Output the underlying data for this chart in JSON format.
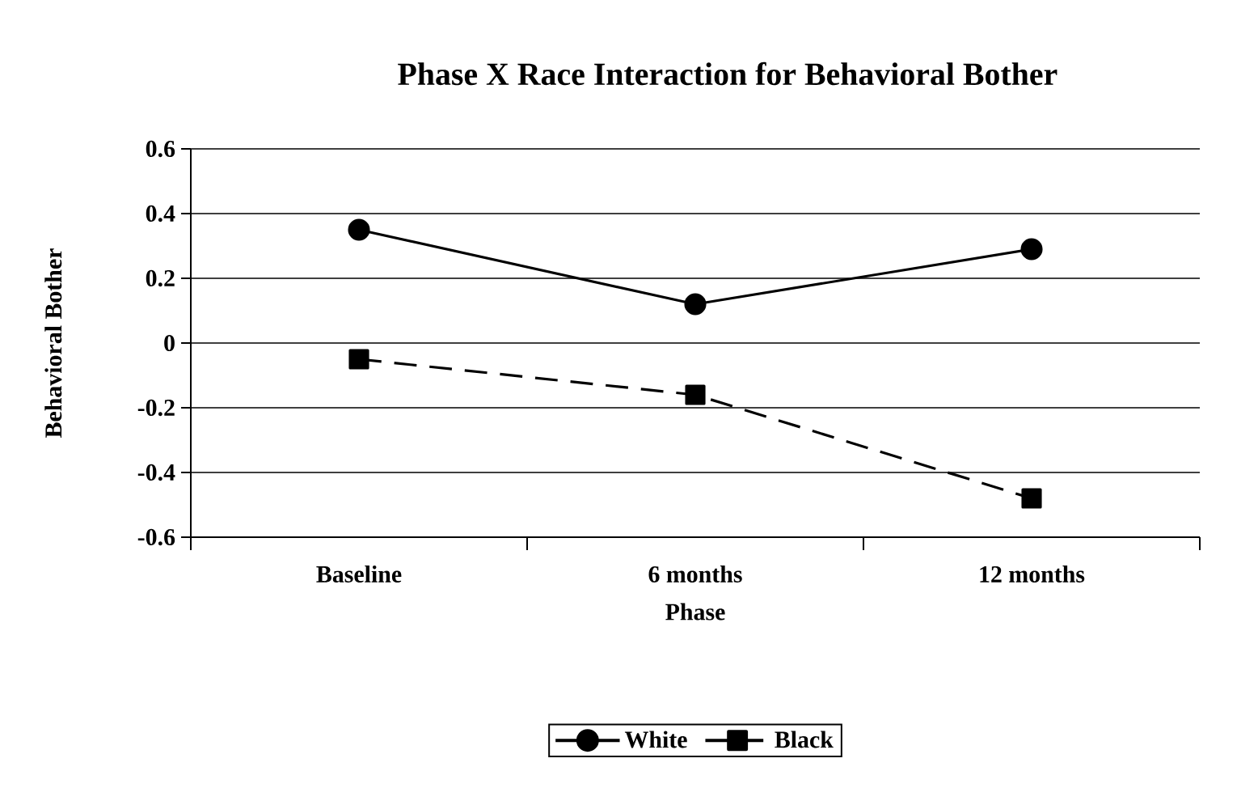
{
  "chart_data": {
    "type": "line",
    "title": "Phase X Race Interaction for Behavioral Bother",
    "xlabel": "Phase",
    "ylabel": "Behavioral Bother",
    "categories": [
      "Baseline",
      "6 months",
      "12 months"
    ],
    "series": [
      {
        "name": "White",
        "color": "#000000",
        "values": [
          0.35,
          0.12,
          0.29
        ],
        "marker": "circle",
        "line_style": "solid"
      },
      {
        "name": "Black",
        "color": "#000000",
        "values": [
          -0.05,
          -0.16,
          -0.48
        ],
        "marker": "square",
        "line_style": "dashed"
      }
    ],
    "ylim": [
      -0.6,
      0.6
    ],
    "yticks": [
      -0.6,
      -0.4,
      -0.2,
      0,
      0.2,
      0.4,
      0.6
    ],
    "grid": "y",
    "legend": "bottom"
  }
}
